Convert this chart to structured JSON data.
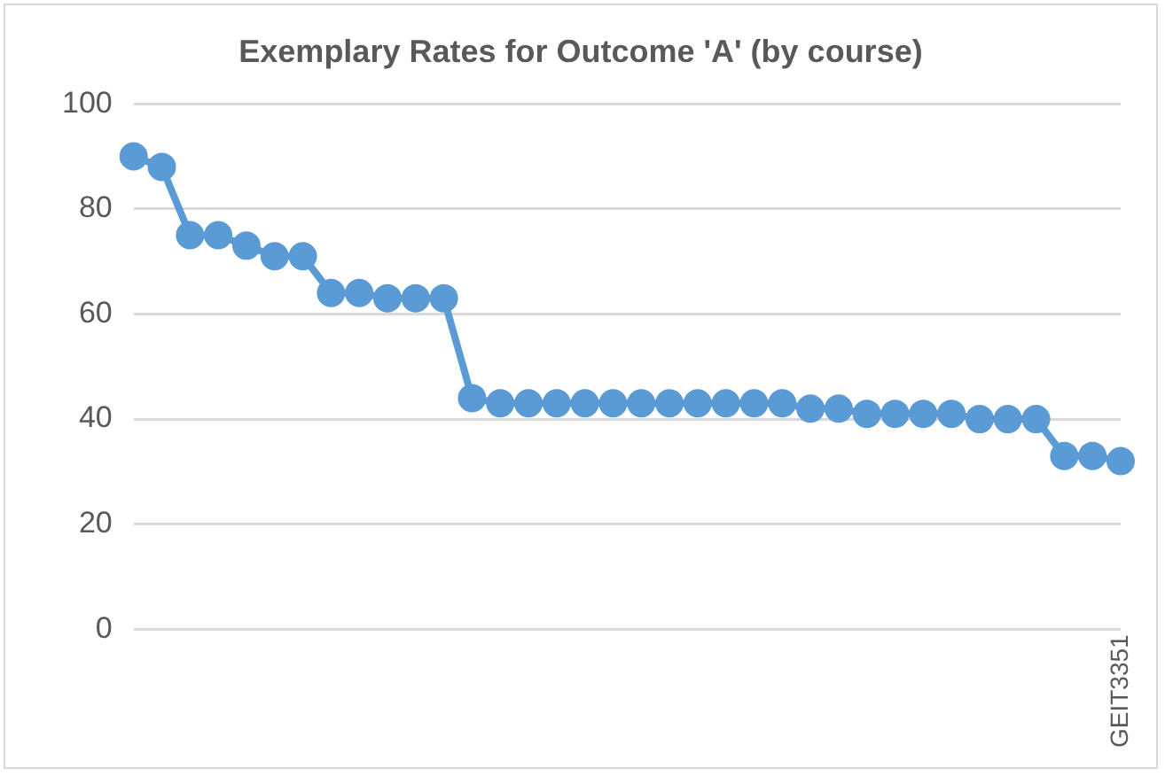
{
  "chart_data": {
    "type": "line",
    "title": "Exemplary Rates for Outcome 'A' (by course)",
    "categories": [
      null,
      null,
      null,
      null,
      null,
      null,
      null,
      null,
      null,
      null,
      null,
      null,
      null,
      null,
      null,
      null,
      null,
      null,
      null,
      null,
      null,
      null,
      null,
      null,
      null,
      null,
      null,
      null,
      null,
      null,
      null,
      null,
      null,
      null,
      null,
      "GEIT3351"
    ],
    "series": [
      {
        "color": "#5b9bd5",
        "values": [
          90,
          88,
          75,
          75,
          73,
          71,
          71,
          64,
          64,
          63,
          63,
          63,
          44,
          43,
          43,
          43,
          43,
          43,
          43,
          43,
          43,
          43,
          43,
          43,
          42,
          42,
          41,
          41,
          41,
          41,
          40,
          40,
          40,
          33,
          33,
          32
        ]
      }
    ],
    "ylim": [
      0,
      100
    ],
    "yticks": [
      0,
      20,
      40,
      60,
      80,
      100
    ],
    "grid": "y",
    "legend": false,
    "marker": "circle",
    "line_style": "solid"
  }
}
